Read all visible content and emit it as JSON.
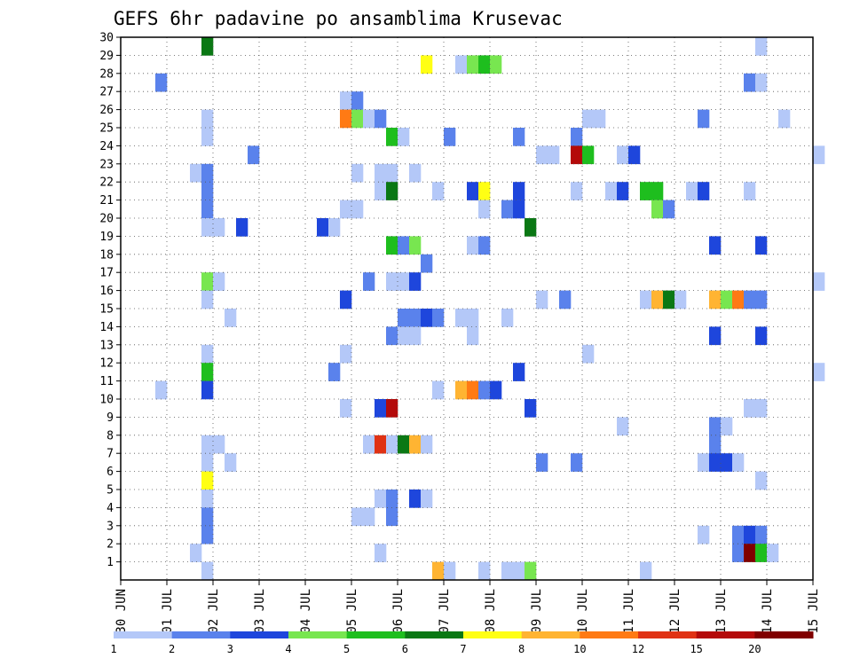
{
  "chart_data": {
    "type": "heatmap",
    "title": "GEFS 6hr padavine po ansamblima Krusevac",
    "xlabel": "",
    "ylabel": "",
    "x_tick_labels": [
      "30 JUN",
      "01 JUL",
      "02 JUL",
      "03 JUL",
      "04 JUL",
      "05 JUL",
      "06 JUL",
      "07 JUL",
      "08 JUL",
      "09 JUL",
      "10 JUL",
      "11 JUL",
      "12 JUL",
      "13 JUL",
      "14 JUL",
      "15 JUL"
    ],
    "x_range_days": [
      0,
      15
    ],
    "y_tick_labels": [
      1,
      2,
      3,
      4,
      5,
      6,
      7,
      8,
      9,
      10,
      11,
      12,
      13,
      14,
      15,
      16,
      17,
      18,
      19,
      20,
      21,
      22,
      23,
      24,
      25,
      26,
      27,
      28,
      29,
      30
    ],
    "y_range": [
      0,
      30
    ],
    "grid": true,
    "legend": {
      "placement": "bottom",
      "levels": [
        1,
        2,
        3,
        4,
        5,
        6,
        7,
        8,
        10,
        12,
        15,
        20
      ],
      "labels": [
        "1",
        "2",
        "3",
        "4",
        "5",
        "6",
        "7",
        "8",
        "10",
        "12",
        "15",
        "20"
      ],
      "colors": [
        "#b4c8f8",
        "#5a82ec",
        "#1e46dc",
        "#78e650",
        "#1ebe1e",
        "#0a7814",
        "#ffff14",
        "#ffb432",
        "#ff7a14",
        "#e03214",
        "#b40a0a",
        "#800000"
      ]
    },
    "cell_width_days": 0.25,
    "cells_note": "each cell: [day_offset_from_30_JUN, member, color_class_index]",
    "cells": [
      [
        1.75,
        30,
        5
      ],
      [
        13.75,
        30,
        0
      ],
      [
        6.5,
        29,
        6
      ],
      [
        7.25,
        29,
        0
      ],
      [
        7.5,
        29,
        3
      ],
      [
        7.75,
        29,
        4
      ],
      [
        8.0,
        29,
        3
      ],
      [
        0.75,
        28,
        1
      ],
      [
        13.5,
        28,
        1
      ],
      [
        13.75,
        28,
        0
      ],
      [
        4.75,
        27,
        0
      ],
      [
        5.0,
        27,
        1
      ],
      [
        1.75,
        26,
        0
      ],
      [
        4.75,
        26,
        8
      ],
      [
        5.0,
        26,
        3
      ],
      [
        5.25,
        26,
        0
      ],
      [
        5.5,
        26,
        1
      ],
      [
        10.0,
        26,
        0
      ],
      [
        10.25,
        26,
        0
      ],
      [
        12.5,
        26,
        1
      ],
      [
        14.25,
        26,
        0
      ],
      [
        1.75,
        25,
        0
      ],
      [
        5.75,
        25,
        4
      ],
      [
        6.0,
        25,
        0
      ],
      [
        7.0,
        25,
        1
      ],
      [
        8.5,
        25,
        1
      ],
      [
        9.75,
        25,
        1
      ],
      [
        2.75,
        24,
        1
      ],
      [
        9.0,
        24,
        0
      ],
      [
        9.25,
        24,
        0
      ],
      [
        9.75,
        24,
        10
      ],
      [
        10.0,
        24,
        4
      ],
      [
        10.75,
        24,
        0
      ],
      [
        11.0,
        24,
        2
      ],
      [
        15.0,
        24,
        0
      ],
      [
        1.5,
        23,
        0
      ],
      [
        1.75,
        23,
        1
      ],
      [
        5.0,
        23,
        0
      ],
      [
        5.5,
        23,
        0
      ],
      [
        5.75,
        23,
        0
      ],
      [
        6.25,
        23,
        0
      ],
      [
        1.75,
        22,
        1
      ],
      [
        5.5,
        22,
        0
      ],
      [
        5.75,
        22,
        5
      ],
      [
        6.75,
        22,
        0
      ],
      [
        7.5,
        22,
        2
      ],
      [
        7.75,
        22,
        6
      ],
      [
        8.5,
        22,
        2
      ],
      [
        9.75,
        22,
        0
      ],
      [
        10.5,
        22,
        0
      ],
      [
        10.75,
        22,
        2
      ],
      [
        11.25,
        22,
        4
      ],
      [
        11.5,
        22,
        4
      ],
      [
        12.25,
        22,
        0
      ],
      [
        12.5,
        22,
        2
      ],
      [
        13.5,
        22,
        0
      ],
      [
        1.75,
        21,
        1
      ],
      [
        4.75,
        21,
        0
      ],
      [
        5.0,
        21,
        0
      ],
      [
        7.75,
        21,
        0
      ],
      [
        8.25,
        21,
        1
      ],
      [
        8.5,
        21,
        2
      ],
      [
        11.5,
        21,
        3
      ],
      [
        11.75,
        21,
        1
      ],
      [
        1.75,
        20,
        0
      ],
      [
        2.0,
        20,
        0
      ],
      [
        2.5,
        20,
        2
      ],
      [
        4.25,
        20,
        2
      ],
      [
        4.5,
        20,
        0
      ],
      [
        8.75,
        20,
        5
      ],
      [
        5.75,
        19,
        4
      ],
      [
        6.0,
        19,
        1
      ],
      [
        6.25,
        19,
        3
      ],
      [
        7.5,
        19,
        0
      ],
      [
        7.75,
        19,
        1
      ],
      [
        12.75,
        19,
        2
      ],
      [
        13.75,
        19,
        2
      ],
      [
        6.5,
        18,
        1
      ],
      [
        1.75,
        17,
        3
      ],
      [
        2.0,
        17,
        0
      ],
      [
        5.25,
        17,
        1
      ],
      [
        5.75,
        17,
        0
      ],
      [
        6.0,
        17,
        0
      ],
      [
        6.25,
        17,
        2
      ],
      [
        15.0,
        17,
        0
      ],
      [
        1.75,
        16,
        0
      ],
      [
        4.75,
        16,
        2
      ],
      [
        9.0,
        16,
        0
      ],
      [
        9.5,
        16,
        1
      ],
      [
        11.25,
        16,
        0
      ],
      [
        11.5,
        16,
        7
      ],
      [
        11.75,
        16,
        5
      ],
      [
        12.0,
        16,
        0
      ],
      [
        12.75,
        16,
        7
      ],
      [
        13.0,
        16,
        3
      ],
      [
        13.25,
        16,
        8
      ],
      [
        13.5,
        16,
        1
      ],
      [
        13.75,
        16,
        1
      ],
      [
        2.25,
        15,
        0
      ],
      [
        6.0,
        15,
        1
      ],
      [
        6.25,
        15,
        1
      ],
      [
        6.5,
        15,
        2
      ],
      [
        6.75,
        15,
        1
      ],
      [
        7.25,
        15,
        0
      ],
      [
        7.5,
        15,
        0
      ],
      [
        8.25,
        15,
        0
      ],
      [
        5.75,
        14,
        1
      ],
      [
        6.0,
        14,
        0
      ],
      [
        6.25,
        14,
        0
      ],
      [
        7.5,
        14,
        0
      ],
      [
        12.75,
        14,
        2
      ],
      [
        13.75,
        14,
        2
      ],
      [
        1.75,
        13,
        0
      ],
      [
        4.75,
        13,
        0
      ],
      [
        10.0,
        13,
        0
      ],
      [
        1.75,
        12,
        4
      ],
      [
        4.5,
        12,
        1
      ],
      [
        8.5,
        12,
        2
      ],
      [
        15.0,
        12,
        0
      ],
      [
        0.75,
        11,
        0
      ],
      [
        1.75,
        11,
        2
      ],
      [
        6.75,
        11,
        0
      ],
      [
        7.25,
        11,
        7
      ],
      [
        7.5,
        11,
        8
      ],
      [
        7.75,
        11,
        1
      ],
      [
        8.0,
        11,
        2
      ],
      [
        4.75,
        10,
        0
      ],
      [
        5.5,
        10,
        2
      ],
      [
        5.75,
        10,
        10
      ],
      [
        8.75,
        10,
        2
      ],
      [
        13.5,
        10,
        0
      ],
      [
        13.75,
        10,
        0
      ],
      [
        10.75,
        9,
        0
      ],
      [
        12.75,
        9,
        1
      ],
      [
        13.0,
        9,
        0
      ],
      [
        1.75,
        8,
        0
      ],
      [
        2.0,
        8,
        0
      ],
      [
        5.25,
        8,
        0
      ],
      [
        5.5,
        8,
        9
      ],
      [
        5.75,
        8,
        0
      ],
      [
        6.0,
        8,
        5
      ],
      [
        6.25,
        8,
        7
      ],
      [
        6.5,
        8,
        0
      ],
      [
        12.75,
        8,
        1
      ],
      [
        1.75,
        7,
        0
      ],
      [
        2.25,
        7,
        0
      ],
      [
        9.0,
        7,
        1
      ],
      [
        9.75,
        7,
        1
      ],
      [
        12.5,
        7,
        0
      ],
      [
        12.75,
        7,
        2
      ],
      [
        13.0,
        7,
        2
      ],
      [
        13.25,
        7,
        0
      ],
      [
        1.75,
        6,
        6
      ],
      [
        13.75,
        6,
        0
      ],
      [
        1.75,
        5,
        0
      ],
      [
        5.5,
        5,
        0
      ],
      [
        5.75,
        5,
        1
      ],
      [
        6.25,
        5,
        2
      ],
      [
        6.5,
        5,
        0
      ],
      [
        1.75,
        4,
        1
      ],
      [
        5.0,
        4,
        0
      ],
      [
        5.25,
        4,
        0
      ],
      [
        5.75,
        4,
        1
      ],
      [
        1.75,
        3,
        1
      ],
      [
        12.5,
        3,
        0
      ],
      [
        13.25,
        3,
        1
      ],
      [
        13.5,
        3,
        2
      ],
      [
        13.75,
        3,
        1
      ],
      [
        1.5,
        2,
        0
      ],
      [
        5.5,
        2,
        0
      ],
      [
        13.25,
        2,
        1
      ],
      [
        13.5,
        2,
        11
      ],
      [
        13.75,
        2,
        4
      ],
      [
        14.0,
        2,
        0
      ],
      [
        1.75,
        1,
        0
      ],
      [
        6.75,
        1,
        7
      ],
      [
        7.0,
        1,
        0
      ],
      [
        7.75,
        1,
        0
      ],
      [
        8.25,
        1,
        0
      ],
      [
        8.5,
        1,
        0
      ],
      [
        8.75,
        1,
        3
      ],
      [
        11.25,
        1,
        0
      ]
    ]
  }
}
